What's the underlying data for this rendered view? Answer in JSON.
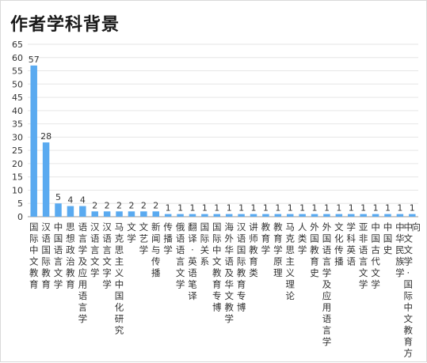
{
  "chart_data": {
    "type": "bar",
    "title": "作者学科背景",
    "categories": [
      "国际中文教育",
      "汉语国际教育",
      "中国语言文学",
      "思想政治教育",
      "语言学及应用语言学",
      "汉语言文学",
      "汉语言文字学",
      "马克思主义中国化研究",
      "文学",
      "文艺学",
      "新闻与传播",
      "传播学",
      "俄语语言文学",
      "翻译·英语笔译",
      "国际关系",
      "国际中文教育专博",
      "海外华语及华文教学",
      "汉语国际教育专博",
      "讲师教育类",
      "教育学",
      "教育学原理",
      "马克思主义理论",
      "人类学",
      "外国教育史",
      "外国语言学及应用语言学",
      "文化传播",
      "学科英语",
      "亚非语言文学",
      "中国古代文学",
      "中国史",
      "中华民族学",
      "中文文学·国际中文教育方向"
    ],
    "values": [
      57,
      28,
      5,
      4,
      4,
      2,
      2,
      2,
      2,
      2,
      2,
      1,
      1,
      1,
      1,
      1,
      1,
      1,
      1,
      1,
      1,
      1,
      1,
      1,
      1,
      1,
      1,
      1,
      1,
      1,
      1,
      1
    ],
    "ylim": [
      0,
      65
    ],
    "yticks": [
      0,
      5,
      10,
      15,
      20,
      25,
      30,
      35,
      40,
      45,
      50,
      55,
      60,
      65
    ],
    "grid": true,
    "bar_color": "#5aaaf0",
    "grid_color": "#e6e6e6",
    "axis_color": "#999999",
    "text_color": "#333333"
  }
}
